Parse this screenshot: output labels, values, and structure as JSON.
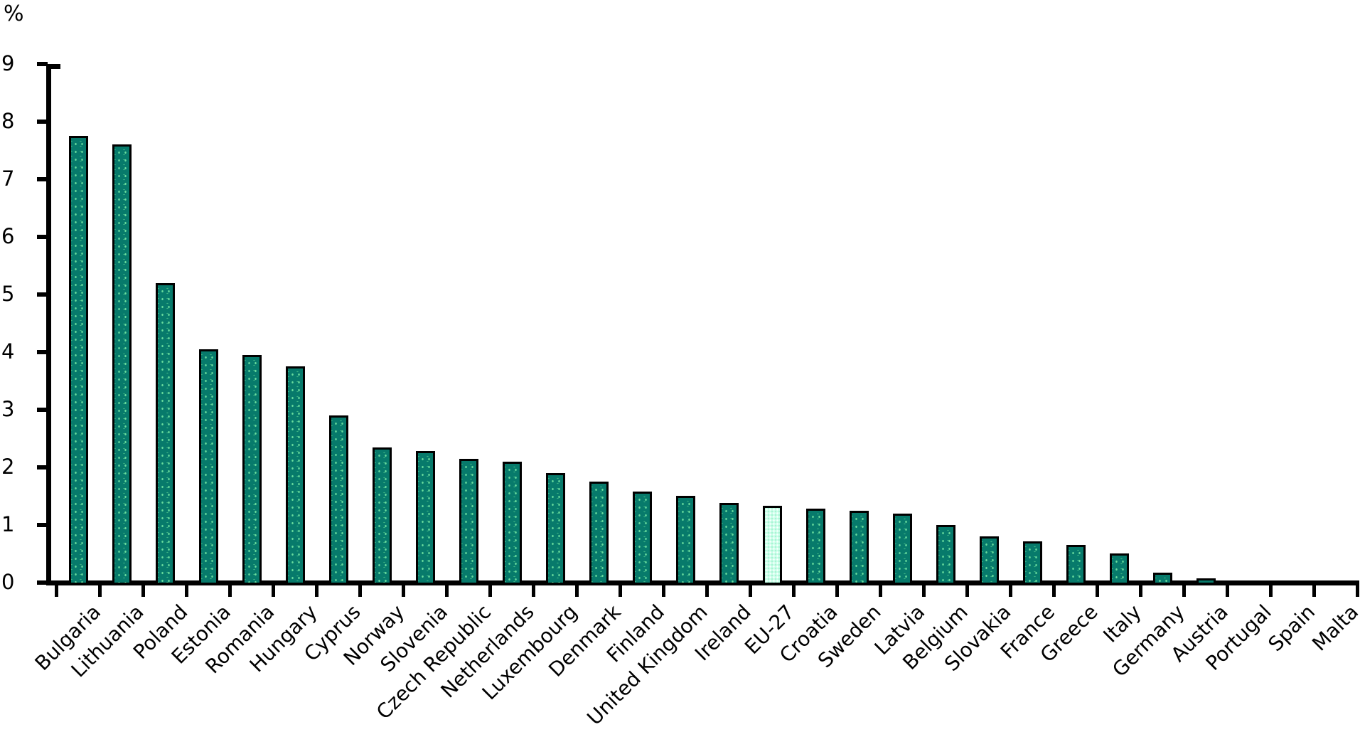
{
  "chart_data": {
    "type": "bar",
    "title": "",
    "ylabel": "%",
    "xlabel": "",
    "ylim": [
      0,
      9
    ],
    "grid": false,
    "legend": "none",
    "y_tick_labels": [
      "9",
      "8",
      "7",
      "6",
      "5",
      "4",
      "3",
      "2",
      "1",
      "0"
    ],
    "categories": [
      "Bulgaria",
      "Lithuania",
      "Poland",
      "Estonia",
      "Romania",
      "Hungary",
      "Cyprus",
      "Norway",
      "Slovenia",
      "Czech Republic",
      "Netherlands",
      "Luxembourg",
      "Denmark",
      "Finland",
      "United Kingdom",
      "Ireland",
      "EU-27",
      "Croatia",
      "Sweden",
      "Latvia",
      "Belgium",
      "Slovakia",
      "France",
      "Greece",
      "Italy",
      "Germany",
      "Austria",
      "Portugal",
      "Spain",
      "Malta"
    ],
    "values": [
      7.75,
      7.6,
      5.2,
      4.05,
      3.95,
      3.75,
      2.9,
      2.35,
      2.28,
      2.15,
      2.1,
      1.9,
      1.75,
      1.58,
      1.5,
      1.38,
      1.33,
      1.29,
      1.25,
      1.2,
      1.0,
      0.8,
      0.72,
      0.66,
      0.5,
      0.17,
      0.08,
      0,
      0,
      0
    ],
    "highlight_category": "EU-27",
    "bar_color": "#077a6b",
    "highlight_color": "#c9ffe9",
    "axis_color": "#000000"
  }
}
